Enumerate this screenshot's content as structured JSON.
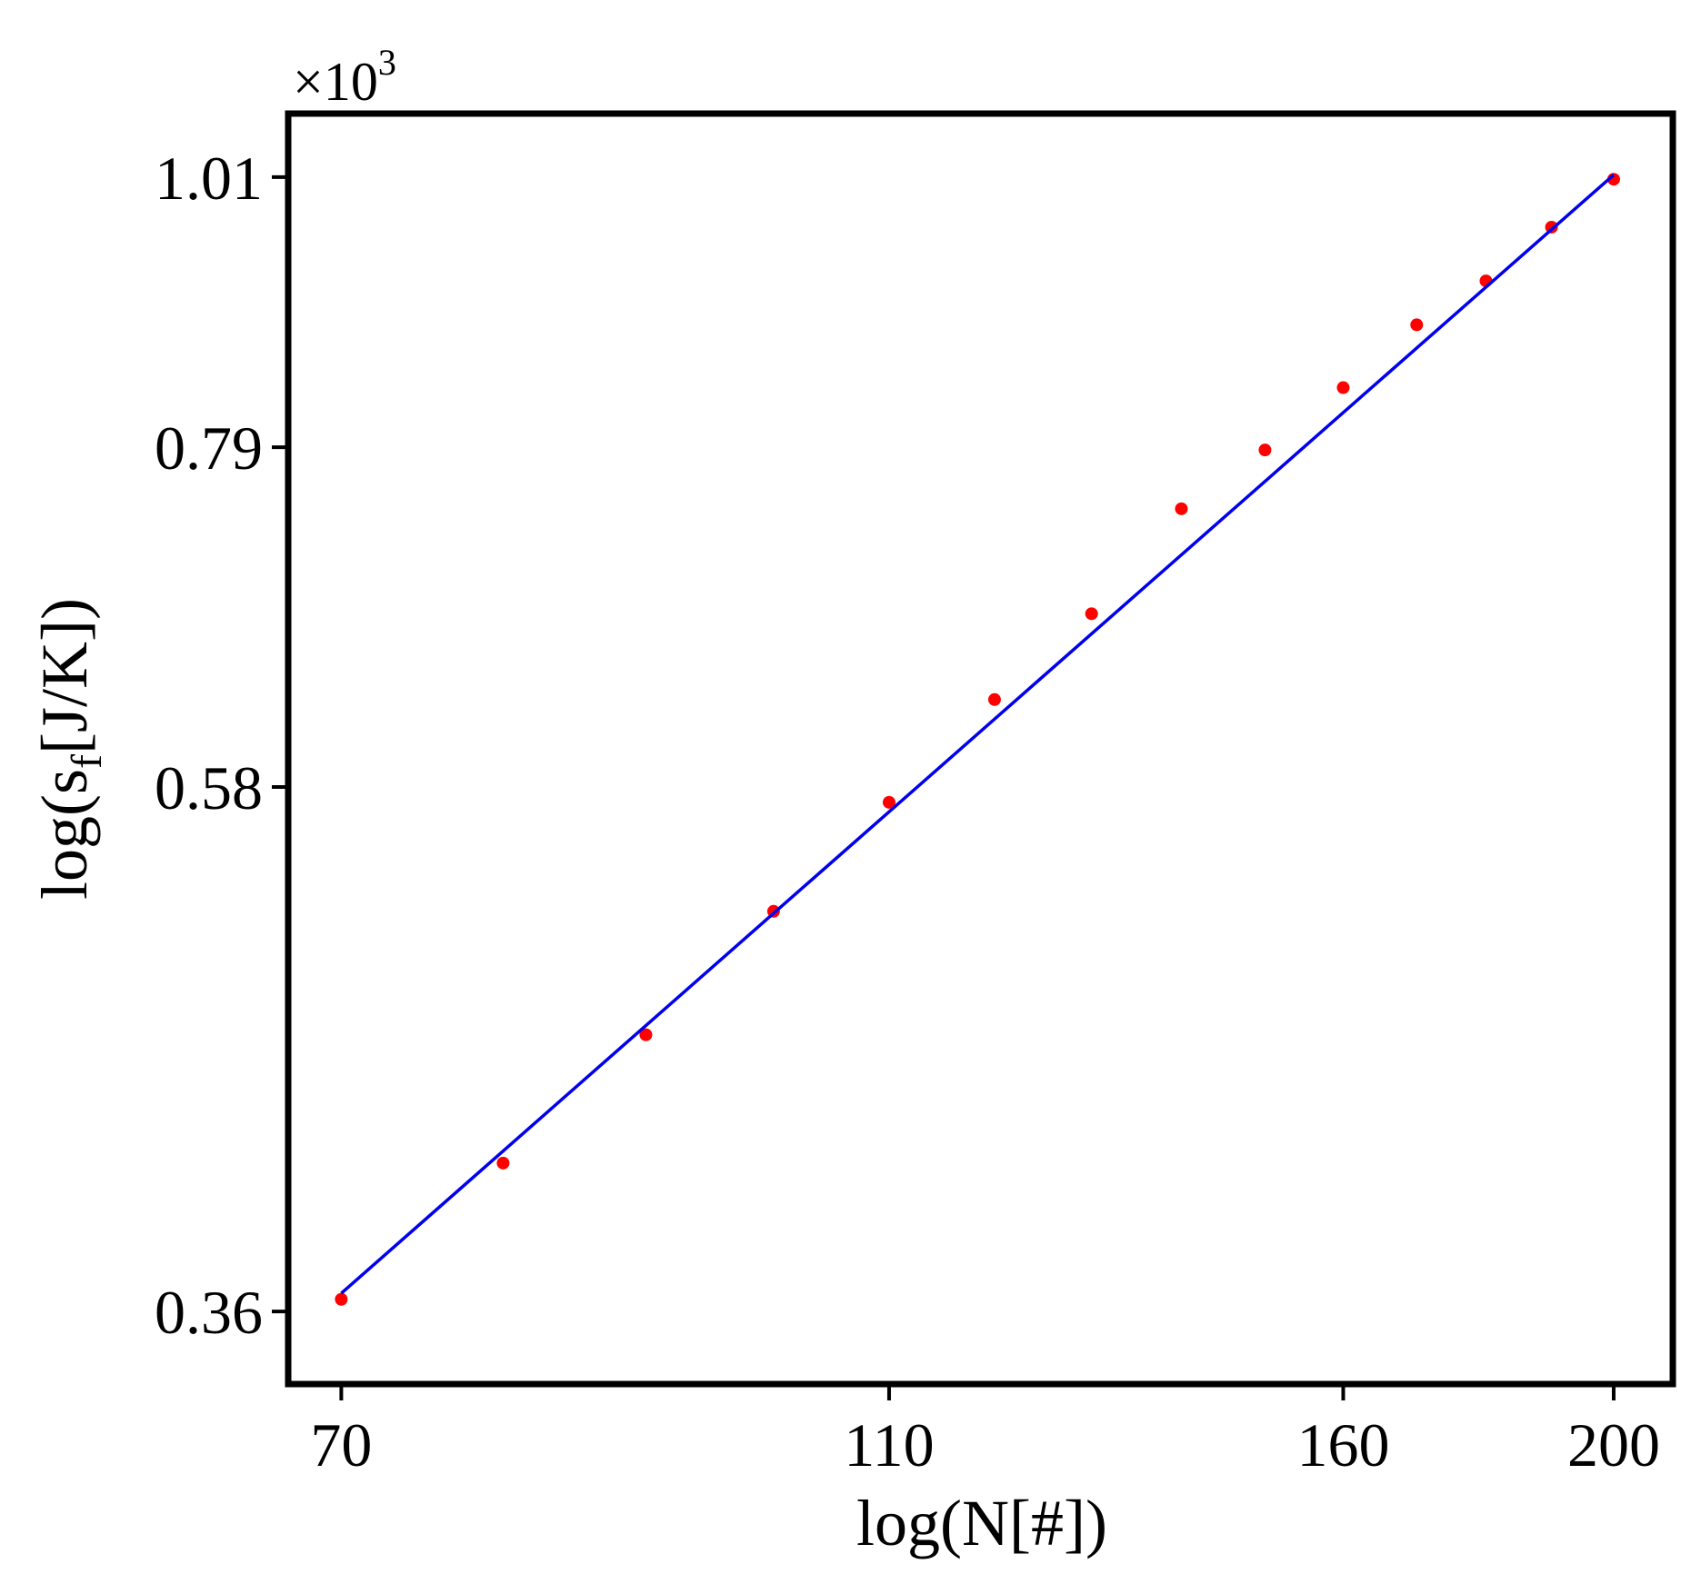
{
  "chart_data": {
    "type": "scatter",
    "title": "",
    "xlabel": "log(N[#])",
    "ylabel_main": "log(s",
    "ylabel_sub": "f",
    "ylabel_tail": "[J/K])",
    "y_multiplier_base": "×10",
    "y_multiplier_exp": "3",
    "x_scale": "log",
    "y_scale": "log",
    "xlim": [
      67,
      210
    ],
    "ylim": [
      0.337,
      1.07
    ],
    "x_ticks": [
      {
        "value": 70,
        "label": "70"
      },
      {
        "value": 110,
        "label": "110"
      },
      {
        "value": 160,
        "label": "160"
      },
      {
        "value": 200,
        "label": "200"
      }
    ],
    "y_ticks": [
      {
        "value": 0.36,
        "label": "0.36"
      },
      {
        "value": 0.58,
        "label": "0.58"
      },
      {
        "value": 0.79,
        "label": "0.79"
      },
      {
        "value": 1.01,
        "label": "1.01"
      }
    ],
    "grid": false,
    "series": [
      {
        "kind": "points",
        "color": "#ff0000",
        "x": [
          70,
          80,
          90,
          100,
          110,
          120,
          130,
          140,
          150,
          160,
          170,
          180,
          190,
          200
        ],
        "y": [
          0.364,
          0.412,
          0.463,
          0.518,
          0.572,
          0.628,
          0.679,
          0.747,
          0.788,
          0.834,
          0.883,
          0.919,
          0.965,
          1.008
        ]
      },
      {
        "kind": "fit-line",
        "color": "#0000ee",
        "x": [
          70,
          200
        ],
        "y": [
          0.366,
          1.012
        ]
      }
    ]
  }
}
